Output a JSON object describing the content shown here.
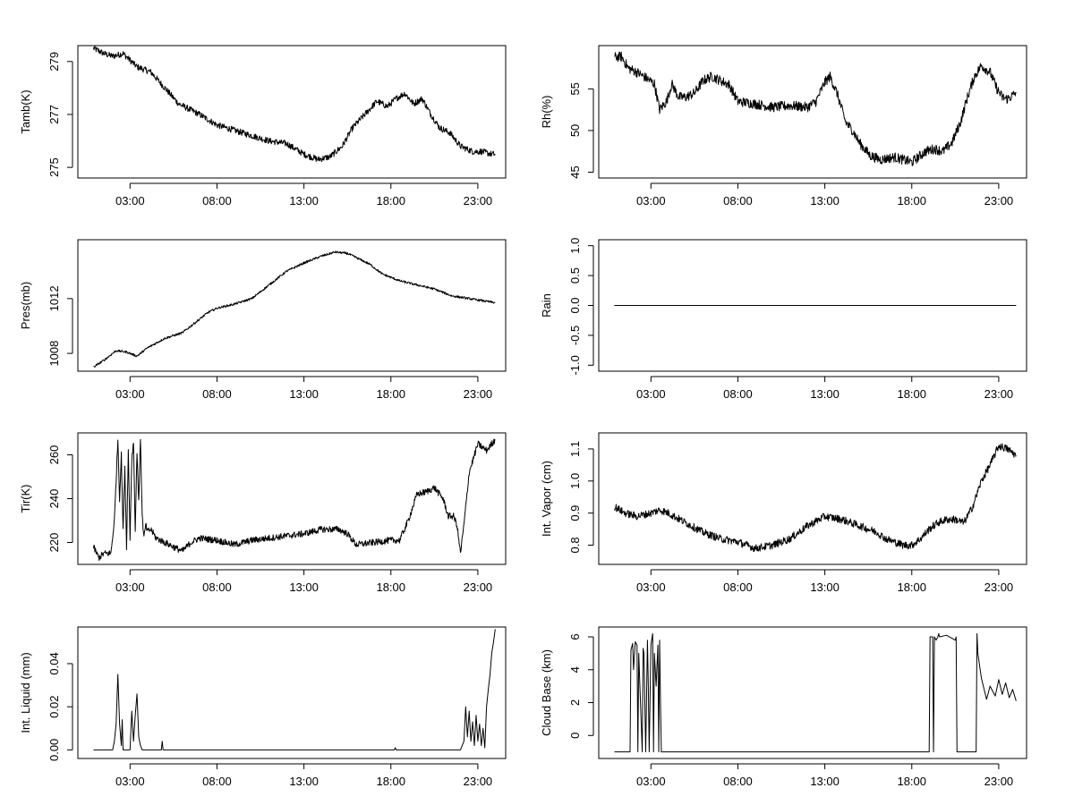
{
  "chart_data": [
    {
      "id": "tamb",
      "type": "line",
      "ylabel": "Tamb(K)",
      "xlim": [
        0,
        24.6
      ],
      "xticks": [
        3,
        8,
        13,
        18,
        23
      ],
      "xtick_labels": [
        "03:00",
        "08:00",
        "13:00",
        "18:00",
        "23:00"
      ],
      "ylim": [
        274.6,
        279.6
      ],
      "yticks": [
        275,
        277,
        279
      ],
      "ytick_labels": [
        "275",
        "277",
        "279"
      ],
      "noise": 0.12,
      "series": [
        {
          "name": "Tamb(K)",
          "x": [
            0.9,
            1.5,
            2.0,
            2.6,
            3.4,
            4.2,
            5.0,
            5.8,
            7.0,
            8.0,
            9.0,
            10.0,
            11.0,
            12.0,
            13.0,
            13.8,
            14.5,
            15.2,
            15.8,
            16.5,
            17.2,
            17.8,
            18.3,
            18.8,
            19.3,
            19.8,
            20.3,
            20.8,
            21.4,
            22.0,
            22.7,
            23.2,
            23.8,
            24.0
          ],
          "y": [
            279.5,
            279.3,
            279.2,
            279.3,
            278.8,
            278.6,
            278.0,
            277.4,
            277.0,
            276.6,
            276.4,
            276.2,
            276.0,
            275.9,
            275.5,
            275.3,
            275.4,
            275.8,
            276.5,
            277.0,
            277.5,
            277.3,
            277.6,
            277.8,
            277.4,
            277.6,
            277.0,
            276.5,
            276.3,
            275.8,
            275.6,
            275.6,
            275.5,
            275.5
          ]
        }
      ]
    },
    {
      "id": "rh",
      "type": "line",
      "ylabel": "Rh(%)",
      "xlim": [
        0,
        24.6
      ],
      "xticks": [
        3,
        8,
        13,
        18,
        23
      ],
      "xtick_labels": [
        "03:00",
        "08:00",
        "13:00",
        "18:00",
        "23:00"
      ],
      "ylim": [
        44.3,
        60.2
      ],
      "yticks": [
        45,
        50,
        55
      ],
      "ytick_labels": [
        "45",
        "50",
        "55"
      ],
      "noise": 0.6,
      "series": [
        {
          "name": "Rh(%)",
          "x": [
            0.9,
            1.3,
            1.7,
            2.2,
            2.8,
            3.2,
            3.5,
            3.9,
            4.2,
            4.6,
            5.0,
            5.5,
            6.0,
            6.5,
            7.0,
            7.5,
            8.0,
            9.0,
            10.0,
            11.0,
            12.0,
            12.5,
            13.0,
            13.3,
            13.7,
            14.2,
            14.6,
            15.0,
            15.6,
            16.2,
            17.0,
            17.5,
            18.0,
            18.8,
            19.3,
            19.8,
            20.3,
            20.8,
            21.2,
            21.6,
            22.0,
            22.5,
            22.9,
            23.2,
            23.5,
            23.8,
            24.0
          ],
          "y": [
            58.8,
            58.9,
            57.5,
            57.0,
            56.2,
            55.6,
            52.5,
            53.5,
            55.6,
            54.0,
            54.0,
            54.5,
            56.0,
            56.5,
            56.0,
            55.5,
            53.5,
            53.2,
            52.8,
            53.0,
            52.8,
            53.5,
            55.8,
            56.5,
            54.5,
            51.0,
            50.0,
            48.5,
            47.0,
            46.5,
            46.8,
            46.5,
            46.2,
            47.5,
            47.8,
            47.5,
            48.5,
            51.0,
            54.0,
            56.5,
            57.8,
            57.0,
            55.0,
            54.0,
            53.8,
            54.2,
            54.6
          ]
        }
      ]
    },
    {
      "id": "pres",
      "type": "line",
      "ylabel": "Pres(mb)",
      "xlim": [
        0,
        24.6
      ],
      "xticks": [
        3,
        8,
        13,
        18,
        23
      ],
      "xtick_labels": [
        "03:00",
        "08:00",
        "13:00",
        "18:00",
        "23:00"
      ],
      "ylim": [
        1006.7,
        1016.3
      ],
      "yticks": [
        1008,
        1012
      ],
      "ytick_labels": [
        "1008",
        "1012"
      ],
      "noise": 0.08,
      "series": [
        {
          "name": "Pres(mb)",
          "x": [
            0.9,
            1.5,
            2.2,
            2.8,
            3.4,
            4.0,
            5.0,
            6.0,
            7.0,
            7.5,
            8.0,
            9.0,
            10.0,
            11.0,
            12.0,
            13.0,
            14.0,
            14.8,
            15.5,
            16.0,
            16.8,
            17.5,
            18.5,
            19.5,
            20.5,
            21.5,
            22.5,
            23.5,
            24.0
          ],
          "y": [
            1007.0,
            1007.5,
            1008.2,
            1008.1,
            1007.8,
            1008.4,
            1009.1,
            1009.5,
            1010.5,
            1011.0,
            1011.3,
            1011.6,
            1012.0,
            1013.0,
            1014.0,
            1014.6,
            1015.1,
            1015.4,
            1015.3,
            1015.0,
            1014.5,
            1013.8,
            1013.3,
            1013.0,
            1012.7,
            1012.2,
            1012.0,
            1011.8,
            1011.7
          ]
        }
      ]
    },
    {
      "id": "rain",
      "type": "line",
      "ylabel": "Rain",
      "xlim": [
        0,
        24.6
      ],
      "xticks": [
        3,
        8,
        13,
        18,
        23
      ],
      "xtick_labels": [
        "03:00",
        "08:00",
        "13:00",
        "18:00",
        "23:00"
      ],
      "ylim": [
        -1.1,
        1.1
      ],
      "yticks": [
        -1.0,
        -0.5,
        0.0,
        0.5,
        1.0
      ],
      "ytick_labels": [
        "-1.0",
        "-0.5",
        "0.0",
        "0.5",
        "1.0"
      ],
      "noise": 0,
      "series": [
        {
          "name": "Rain",
          "x": [
            0.9,
            24.0
          ],
          "y": [
            0,
            0
          ]
        }
      ]
    },
    {
      "id": "tir",
      "type": "line",
      "ylabel": "Tir(K)",
      "xlim": [
        0,
        24.6
      ],
      "xticks": [
        3,
        8,
        13,
        18,
        23
      ],
      "xtick_labels": [
        "03:00",
        "08:00",
        "13:00",
        "18:00",
        "23:00"
      ],
      "ylim": [
        210,
        270
      ],
      "yticks": [
        220,
        240,
        260
      ],
      "ytick_labels": [
        "220",
        "240",
        "260"
      ],
      "noise": 1.5,
      "series": [
        {
          "name": "Tir(K)",
          "x": [
            0.9,
            1.2,
            1.5,
            1.9,
            2.1,
            2.3,
            2.4,
            2.5,
            2.6,
            2.7,
            2.8,
            2.9,
            3.0,
            3.1,
            3.2,
            3.3,
            3.4,
            3.5,
            3.6,
            3.7,
            3.8,
            3.9,
            4.0,
            4.2,
            4.5,
            5.0,
            5.5,
            6.0,
            6.5,
            7.0,
            8.0,
            9.0,
            10.0,
            11.0,
            12.0,
            13.0,
            14.0,
            15.0,
            15.5,
            16.0,
            17.0,
            18.0,
            18.5,
            19.0,
            19.5,
            20.0,
            20.5,
            21.0,
            21.3,
            21.6,
            21.8,
            22.0,
            22.2,
            22.5,
            23.0,
            23.5,
            24.0
          ],
          "y": [
            218,
            213,
            215,
            215,
            230,
            267,
            240,
            260,
            225,
            255,
            218,
            262,
            222,
            258,
            266,
            225,
            262,
            238,
            268,
            232,
            222,
            228,
            225,
            226,
            222,
            220,
            218,
            216,
            220,
            222,
            221,
            219,
            221,
            222,
            223,
            224,
            226,
            226,
            224,
            219,
            220,
            221,
            221,
            230,
            242,
            243,
            245,
            240,
            232,
            232,
            228,
            215,
            228,
            252,
            265,
            262,
            267
          ]
        }
      ]
    },
    {
      "id": "vapor",
      "type": "line",
      "ylabel": "Int. Vapor (cm)",
      "xlim": [
        0,
        24.6
      ],
      "xticks": [
        3,
        8,
        13,
        18,
        23
      ],
      "xtick_labels": [
        "03:00",
        "08:00",
        "13:00",
        "18:00",
        "23:00"
      ],
      "ylim": [
        0.74,
        1.15
      ],
      "yticks": [
        0.8,
        0.9,
        1.0,
        1.1
      ],
      "ytick_labels": [
        "0.8",
        "0.9",
        "1.0",
        "1.1"
      ],
      "noise": 0.012,
      "series": [
        {
          "name": "Int. Vapor (cm)",
          "x": [
            0.9,
            1.5,
            2.2,
            3.0,
            3.5,
            4.0,
            5.0,
            6.0,
            7.0,
            8.0,
            9.0,
            10.0,
            11.0,
            12.0,
            13.0,
            14.0,
            15.0,
            15.5,
            16.0,
            16.5,
            17.0,
            17.5,
            18.0,
            18.5,
            19.0,
            19.5,
            20.0,
            20.5,
            21.0,
            21.5,
            22.0,
            22.5,
            23.0,
            23.5,
            24.0
          ],
          "y": [
            0.92,
            0.9,
            0.89,
            0.9,
            0.91,
            0.9,
            0.87,
            0.84,
            0.82,
            0.81,
            0.79,
            0.8,
            0.82,
            0.86,
            0.89,
            0.88,
            0.86,
            0.85,
            0.84,
            0.82,
            0.81,
            0.8,
            0.8,
            0.82,
            0.85,
            0.87,
            0.88,
            0.88,
            0.87,
            0.92,
            1.0,
            1.05,
            1.11,
            1.1,
            1.08
          ]
        }
      ]
    },
    {
      "id": "liquid",
      "type": "line",
      "ylabel": "Int. Liquid (mm)",
      "xlim": [
        0,
        24.6
      ],
      "xticks": [
        3,
        8,
        13,
        18,
        23
      ],
      "xtick_labels": [
        "03:00",
        "08:00",
        "13:00",
        "18:00",
        "23:00"
      ],
      "ylim": [
        -0.004,
        0.057
      ],
      "yticks": [
        0.0,
        0.02,
        0.04
      ],
      "ytick_labels": [
        "0.00",
        "0.02",
        "0.04"
      ],
      "noise": 0,
      "series": [
        {
          "name": "Int. Liquid (mm)",
          "x": [
            0.9,
            1.9,
            2.0,
            2.1,
            2.2,
            2.3,
            2.4,
            2.5,
            2.55,
            2.6,
            3.0,
            3.1,
            3.2,
            3.3,
            3.4,
            3.5,
            3.6,
            3.7,
            4.8,
            4.85,
            4.9,
            18.2,
            18.25,
            18.3,
            21.8,
            22.0,
            22.2,
            22.3,
            22.4,
            22.5,
            22.6,
            22.7,
            22.8,
            22.9,
            23.0,
            23.1,
            23.2,
            23.3,
            23.4,
            23.5,
            23.6,
            23.7,
            23.8,
            23.9,
            24.0
          ],
          "y": [
            0,
            0,
            0,
            0.004,
            0.012,
            0.035,
            0.012,
            0.002,
            0.014,
            0,
            0,
            0.018,
            0.004,
            0.016,
            0.026,
            0.006,
            0.002,
            0,
            0,
            0.004,
            0,
            0,
            0.001,
            0,
            0,
            0,
            0.004,
            0.02,
            0.006,
            0.018,
            0.004,
            0.013,
            0.002,
            0.016,
            0.004,
            0.012,
            0.002,
            0.01,
            0.001,
            0.02,
            0.028,
            0.035,
            0.045,
            0.05,
            0.056
          ]
        }
      ]
    },
    {
      "id": "cloud",
      "type": "line",
      "ylabel": "Cloud Base (km)",
      "xlim": [
        0,
        24.6
      ],
      "xticks": [
        3,
        8,
        13,
        18,
        23
      ],
      "xtick_labels": [
        "03:00",
        "08:00",
        "13:00",
        "18:00",
        "23:00"
      ],
      "ylim": [
        -1.4,
        6.6
      ],
      "yticks": [
        0,
        2,
        4,
        6
      ],
      "ytick_labels": [
        "0",
        "2",
        "4",
        "6"
      ],
      "noise": 0,
      "series": [
        {
          "name": "Cloud Base (km)",
          "x": [
            0.9,
            1.8,
            1.85,
            1.95,
            2.0,
            2.1,
            2.2,
            2.25,
            2.3,
            2.4,
            2.5,
            2.55,
            2.6,
            2.7,
            2.8,
            2.85,
            2.9,
            3.0,
            3.1,
            3.15,
            3.2,
            3.3,
            3.4,
            3.45,
            3.5,
            3.55,
            3.6,
            3.7,
            19.0,
            19.05,
            19.2,
            19.25,
            19.3,
            19.4,
            19.5,
            19.55,
            19.6,
            20.0,
            20.5,
            20.55,
            20.6,
            21.7,
            21.75,
            21.8,
            22.0,
            22.3,
            22.5,
            22.8,
            23.0,
            23.2,
            23.4,
            23.6,
            23.8,
            24.0
          ],
          "y": [
            -1,
            -1,
            5.2,
            5.6,
            4.0,
            5.7,
            5.5,
            -1,
            5.0,
            2.0,
            -1,
            5.3,
            5.0,
            -1,
            5.8,
            3.0,
            -1,
            5.5,
            6.2,
            -1,
            5.0,
            3.0,
            5.5,
            -1,
            5.8,
            2.0,
            -1,
            -1,
            -1,
            6.0,
            6.0,
            -1,
            6.0,
            5.8,
            6.0,
            6.2,
            6.0,
            6.1,
            5.8,
            6.0,
            -1,
            -1,
            6.2,
            5.0,
            3.5,
            2.2,
            3.0,
            2.4,
            3.4,
            2.5,
            3.2,
            2.3,
            2.8,
            2.1
          ]
        }
      ]
    }
  ]
}
